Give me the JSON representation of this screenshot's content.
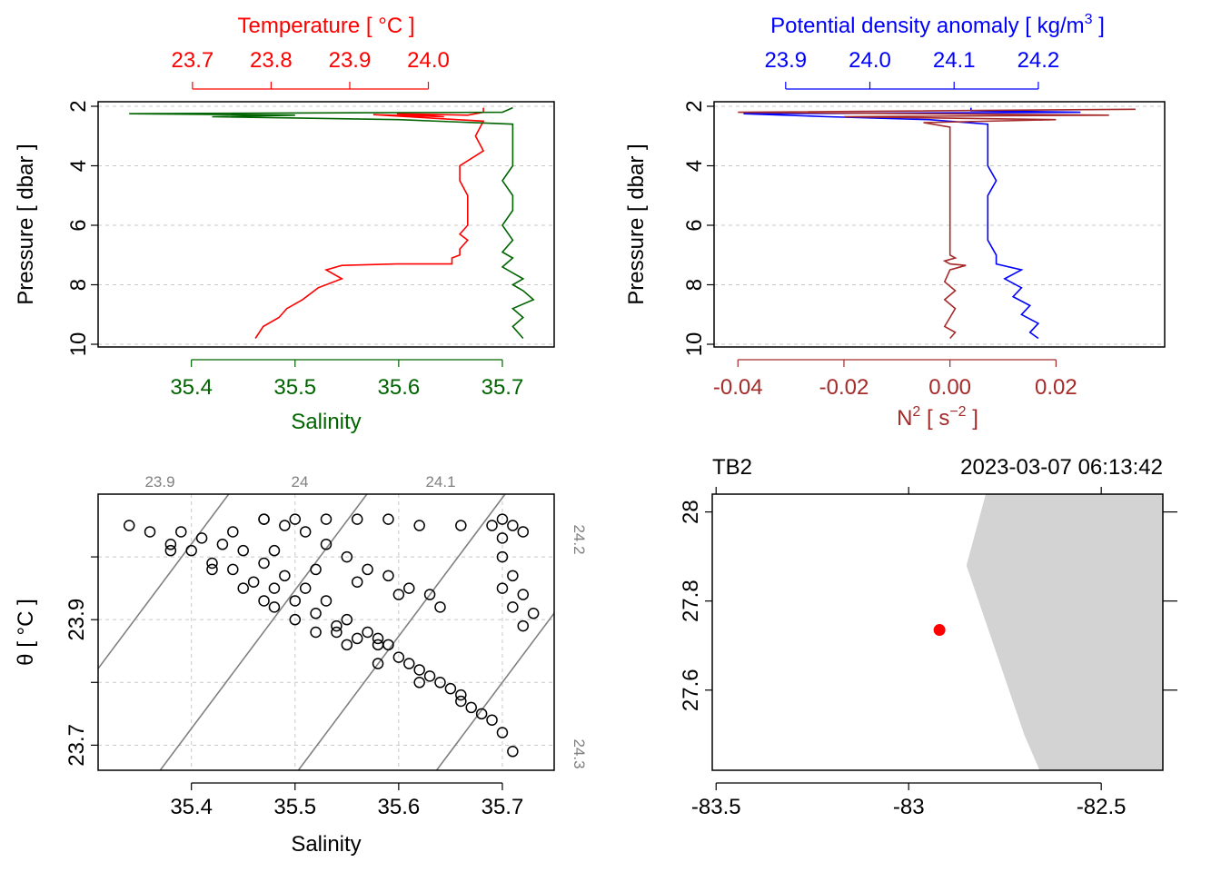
{
  "colors": {
    "temperature": "#ff0000",
    "salinity": "#006400",
    "density": "#0000ff",
    "n2": "#a52a2a",
    "grid": "#c8c8c8",
    "isopycnal": "#808080",
    "land": "#d3d3d3",
    "station": "#ff0000"
  },
  "chart_data": [
    {
      "id": "profile_ts",
      "type": "line",
      "title": "",
      "top_axis_label": "Temperature [ °C ]",
      "top_axis_ticks": [
        23.7,
        23.8,
        23.9,
        24.0
      ],
      "top_axis_tick_labels": [
        "23.7",
        "23.8",
        "23.9",
        "24.0"
      ],
      "top_axis_range": [
        23.58,
        24.16
      ],
      "bottom_axis_label": "Salinity",
      "bottom_axis_ticks": [
        35.4,
        35.5,
        35.6,
        35.7
      ],
      "bottom_axis_tick_labels": [
        "35.4",
        "35.5",
        "35.6",
        "35.7"
      ],
      "bottom_axis_range": [
        35.31,
        35.75
      ],
      "ylabel": "Pressure [ dbar ]",
      "y_ticks": [
        2,
        4,
        6,
        8,
        10
      ],
      "y_tick_labels": [
        "2",
        "4",
        "6",
        "8",
        "10"
      ],
      "ylim": [
        10,
        2
      ],
      "y_inverted": true,
      "grid": true,
      "series": [
        {
          "axis": "top",
          "color_key": "temperature",
          "x": [
            24.07,
            24.07,
            24.05,
            23.96,
            24.02,
            23.93,
            24.07,
            24.06,
            24.07,
            24.04,
            24.04,
            24.05,
            24.05,
            24.05,
            24.04,
            24.05,
            24.04,
            24.04,
            24.03,
            24.03,
            24.02,
            24.0,
            23.96,
            23.89,
            23.87,
            23.89,
            23.86,
            23.84,
            23.82,
            23.81,
            23.79,
            23.78
          ],
          "y": [
            2.05,
            2.2,
            2.3,
            2.25,
            2.35,
            2.28,
            2.5,
            3.0,
            3.5,
            4.0,
            4.5,
            5.0,
            5.5,
            6.0,
            6.3,
            6.5,
            6.8,
            7.0,
            7.1,
            7.3,
            7.3,
            7.3,
            7.3,
            7.35,
            7.5,
            7.8,
            8.1,
            8.5,
            8.8,
            9.1,
            9.4,
            9.8
          ]
        },
        {
          "axis": "bottom",
          "color_key": "salinity",
          "x": [
            35.71,
            35.7,
            35.55,
            35.34,
            35.5,
            35.42,
            35.6,
            35.71,
            35.71,
            35.71,
            35.71,
            35.7,
            35.71,
            35.71,
            35.7,
            35.71,
            35.7,
            35.71,
            35.7,
            35.71,
            35.72,
            35.71,
            35.72,
            35.73,
            35.71,
            35.72,
            35.71,
            35.72
          ],
          "y": [
            2.05,
            2.2,
            2.22,
            2.25,
            2.3,
            2.35,
            2.45,
            2.6,
            3.0,
            3.5,
            4.0,
            4.5,
            5.0,
            5.5,
            6.0,
            6.5,
            6.9,
            7.1,
            7.4,
            7.6,
            7.8,
            8.0,
            8.2,
            8.5,
            8.8,
            9.1,
            9.4,
            9.8
          ]
        }
      ]
    },
    {
      "id": "profile_density",
      "type": "line",
      "title": "",
      "top_axis_label_prefix": "Potential density anomaly [ kg/m",
      "top_axis_label_sup": "3",
      "top_axis_label_suffix": " ]",
      "top_axis_ticks": [
        23.9,
        24.0,
        24.1,
        24.2
      ],
      "top_axis_tick_labels": [
        "23.9",
        "24.0",
        "24.1",
        "24.2"
      ],
      "top_axis_range": [
        23.815,
        24.35
      ],
      "bottom_axis_label_prefix": "N",
      "bottom_axis_label_sup1": "2",
      "bottom_axis_label_mid": " [ s",
      "bottom_axis_label_sup2": "−2",
      "bottom_axis_label_suffix": " ]",
      "bottom_axis_ticks": [
        -0.04,
        -0.02,
        0.0,
        0.02
      ],
      "bottom_axis_tick_labels": [
        "-0.04",
        "-0.02",
        "0.00",
        "0.02"
      ],
      "bottom_axis_range": [
        -0.0445,
        0.0405
      ],
      "ylabel": "Pressure [ dbar ]",
      "y_ticks": [
        2,
        4,
        6,
        8,
        10
      ],
      "y_tick_labels": [
        "2",
        "4",
        "6",
        "8",
        "10"
      ],
      "ylim": [
        10,
        2
      ],
      "y_inverted": true,
      "grid": true,
      "series": [
        {
          "axis": "top",
          "color_key": "density",
          "x": [
            24.12,
            24.12,
            24.25,
            23.85,
            23.95,
            24.07,
            24.14,
            24.14,
            24.14,
            24.14,
            24.15,
            24.14,
            24.14,
            24.14,
            24.14,
            24.15,
            24.15,
            24.18,
            24.16,
            24.18,
            24.17,
            24.19,
            24.18,
            24.2,
            24.19,
            24.2
          ],
          "y": [
            2.05,
            2.15,
            2.2,
            2.25,
            2.35,
            2.45,
            2.6,
            3.0,
            3.5,
            4.0,
            4.5,
            5.0,
            5.5,
            6.0,
            6.5,
            7.0,
            7.3,
            7.5,
            7.8,
            8.1,
            8.4,
            8.7,
            9.0,
            9.3,
            9.6,
            9.8
          ]
        },
        {
          "axis": "bottom",
          "color_key": "n2",
          "x": [
            0.035,
            -0.04,
            0.03,
            -0.02,
            0.02,
            -0.005,
            0.0,
            0.0,
            0.0,
            0.0,
            0.0,
            0.0,
            0.001,
            -0.001,
            0.0,
            0.003,
            0.0,
            -0.001,
            0.001,
            -0.001,
            0.001,
            0.0,
            -0.001,
            0.001,
            0.0
          ],
          "y": [
            2.1,
            2.2,
            2.3,
            2.35,
            2.45,
            2.55,
            2.7,
            3.5,
            4.5,
            5.5,
            6.5,
            7.0,
            7.1,
            7.2,
            7.3,
            7.35,
            7.5,
            7.9,
            8.2,
            8.5,
            8.8,
            9.1,
            9.4,
            9.6,
            9.8
          ]
        }
      ]
    },
    {
      "id": "ts_diagram",
      "type": "scatter",
      "title": "",
      "xlabel": "Salinity",
      "ylabel": "θ [ °C ]",
      "x_ticks": [
        35.4,
        35.5,
        35.6,
        35.7
      ],
      "x_tick_labels": [
        "35.4",
        "35.5",
        "35.6",
        "35.7"
      ],
      "xlim": [
        35.31,
        35.75
      ],
      "y_ticks": [
        23.7,
        23.8,
        23.9,
        24.0
      ],
      "y_tick_labels": [
        "23.7",
        "",
        "23.9",
        ""
      ],
      "ylim": [
        23.66,
        24.1
      ],
      "grid": true,
      "isopycnal_labels": [
        "23.9",
        "24",
        "24.1",
        "24.2",
        "24.3"
      ],
      "isopycnals": [
        23.9,
        24.0,
        24.1,
        24.2,
        24.3
      ],
      "points": [
        [
          35.34,
          24.05
        ],
        [
          35.36,
          24.04
        ],
        [
          35.38,
          24.02
        ],
        [
          35.4,
          24.01
        ],
        [
          35.42,
          23.99
        ],
        [
          35.44,
          23.98
        ],
        [
          35.46,
          23.96
        ],
        [
          35.48,
          23.95
        ],
        [
          35.5,
          23.93
        ],
        [
          35.52,
          23.91
        ],
        [
          35.54,
          23.89
        ],
        [
          35.56,
          23.87
        ],
        [
          35.58,
          23.86
        ],
        [
          35.6,
          23.84
        ],
        [
          35.62,
          23.82
        ],
        [
          35.64,
          23.8
        ],
        [
          35.66,
          23.78
        ],
        [
          35.68,
          23.75
        ],
        [
          35.7,
          23.72
        ],
        [
          35.71,
          23.69
        ],
        [
          35.39,
          24.04
        ],
        [
          35.41,
          24.03
        ],
        [
          35.43,
          24.02
        ],
        [
          35.45,
          24.01
        ],
        [
          35.47,
          23.99
        ],
        [
          35.49,
          23.97
        ],
        [
          35.51,
          23.95
        ],
        [
          35.53,
          23.93
        ],
        [
          35.55,
          23.9
        ],
        [
          35.57,
          23.88
        ],
        [
          35.59,
          23.86
        ],
        [
          35.61,
          23.83
        ],
        [
          35.63,
          23.81
        ],
        [
          35.65,
          23.79
        ],
        [
          35.67,
          23.76
        ],
        [
          35.47,
          24.06
        ],
        [
          35.49,
          24.05
        ],
        [
          35.51,
          24.04
        ],
        [
          35.53,
          24.02
        ],
        [
          35.55,
          24.0
        ],
        [
          35.57,
          23.98
        ],
        [
          35.59,
          23.97
        ],
        [
          35.61,
          23.95
        ],
        [
          35.63,
          23.94
        ],
        [
          35.47,
          24.06
        ],
        [
          35.5,
          24.06
        ],
        [
          35.53,
          24.06
        ],
        [
          35.56,
          24.06
        ],
        [
          35.59,
          24.06
        ],
        [
          35.62,
          24.05
        ],
        [
          35.66,
          24.05
        ],
        [
          35.69,
          24.05
        ],
        [
          35.7,
          24.03
        ],
        [
          35.7,
          24.06
        ],
        [
          35.71,
          24.05
        ],
        [
          35.7,
          24.0
        ],
        [
          35.71,
          23.97
        ],
        [
          35.72,
          23.94
        ],
        [
          35.71,
          23.92
        ],
        [
          35.72,
          23.89
        ],
        [
          35.73,
          23.91
        ],
        [
          35.7,
          23.95
        ],
        [
          35.72,
          24.04
        ],
        [
          35.38,
          24.01
        ],
        [
          35.42,
          23.98
        ],
        [
          35.45,
          23.95
        ],
        [
          35.48,
          23.92
        ],
        [
          35.52,
          23.88
        ],
        [
          35.55,
          23.86
        ],
        [
          35.58,
          23.83
        ],
        [
          35.62,
          23.8
        ],
        [
          35.66,
          23.77
        ],
        [
          35.69,
          23.74
        ],
        [
          35.44,
          24.04
        ],
        [
          35.48,
          24.01
        ],
        [
          35.52,
          23.98
        ],
        [
          35.56,
          23.96
        ],
        [
          35.6,
          23.94
        ],
        [
          35.64,
          23.92
        ],
        [
          35.47,
          23.93
        ],
        [
          35.5,
          23.9
        ],
        [
          35.54,
          23.88
        ],
        [
          35.58,
          23.87
        ]
      ]
    },
    {
      "id": "station_map",
      "type": "scatter",
      "title": "",
      "station_label": "TB2",
      "datetime_label": "2023-03-07 06:13:42",
      "x_ticks": [
        -83.5,
        -83.0,
        -82.5
      ],
      "x_tick_labels": [
        "-83.5",
        "-83",
        "-82.5"
      ],
      "xlim": [
        -83.51,
        -82.34
      ],
      "y_ticks": [
        27.6,
        27.8,
        28.0
      ],
      "y_tick_labels": [
        "27.6",
        "27.8",
        "28"
      ],
      "ylim": [
        27.42,
        28.04
      ],
      "grid": false,
      "station": {
        "lon": -82.92,
        "lat": 27.735
      },
      "coastline": [
        [
          -82.8,
          28.04
        ],
        [
          -82.85,
          27.88
        ],
        [
          -82.7,
          27.5
        ],
        [
          -82.66,
          27.42
        ],
        [
          -82.34,
          27.42
        ],
        [
          -82.34,
          28.04
        ]
      ]
    }
  ]
}
